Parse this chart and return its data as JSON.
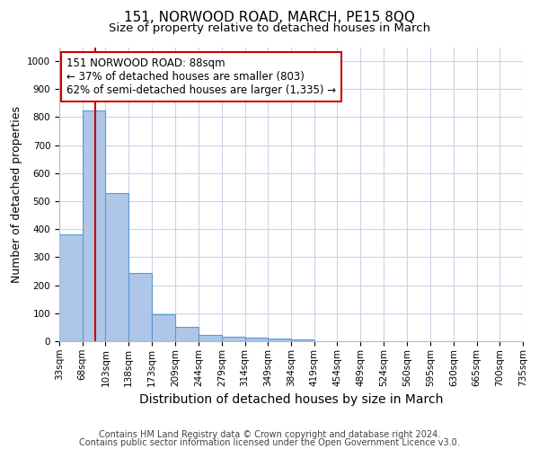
{
  "title": "151, NORWOOD ROAD, MARCH, PE15 8QQ",
  "subtitle": "Size of property relative to detached houses in March",
  "xlabel": "Distribution of detached houses by size in March",
  "ylabel": "Number of detached properties",
  "bins": [
    33,
    68,
    103,
    138,
    173,
    209,
    244,
    279,
    314,
    349,
    384,
    419,
    454,
    489,
    524,
    560,
    595,
    630,
    665,
    700,
    735
  ],
  "bar_heights": [
    380,
    825,
    530,
    243,
    95,
    50,
    22,
    15,
    12,
    10,
    5,
    0,
    0,
    0,
    0,
    0,
    0,
    0,
    0,
    0
  ],
  "bar_color": "#aec6e8",
  "bar_edgecolor": "#5b9bd5",
  "property_size": 88,
  "vline_color": "#cc0000",
  "ylim": [
    0,
    1050
  ],
  "yticks": [
    0,
    100,
    200,
    300,
    400,
    500,
    600,
    700,
    800,
    900,
    1000
  ],
  "annotation_title": "151 NORWOOD ROAD: 88sqm",
  "annotation_line2": "← 37% of detached houses are smaller (803)",
  "annotation_line3": "62% of semi-detached houses are larger (1,335) →",
  "annotation_box_color": "#cc0000",
  "footnote1": "Contains HM Land Registry data © Crown copyright and database right 2024.",
  "footnote2": "Contains public sector information licensed under the Open Government Licence v3.0.",
  "background_color": "#ffffff",
  "grid_color": "#c8d4e8",
  "title_fontsize": 11,
  "subtitle_fontsize": 9.5,
  "xlabel_fontsize": 10,
  "ylabel_fontsize": 9,
  "tick_fontsize": 7.5,
  "annotation_fontsize": 8.5,
  "footnote_fontsize": 7
}
